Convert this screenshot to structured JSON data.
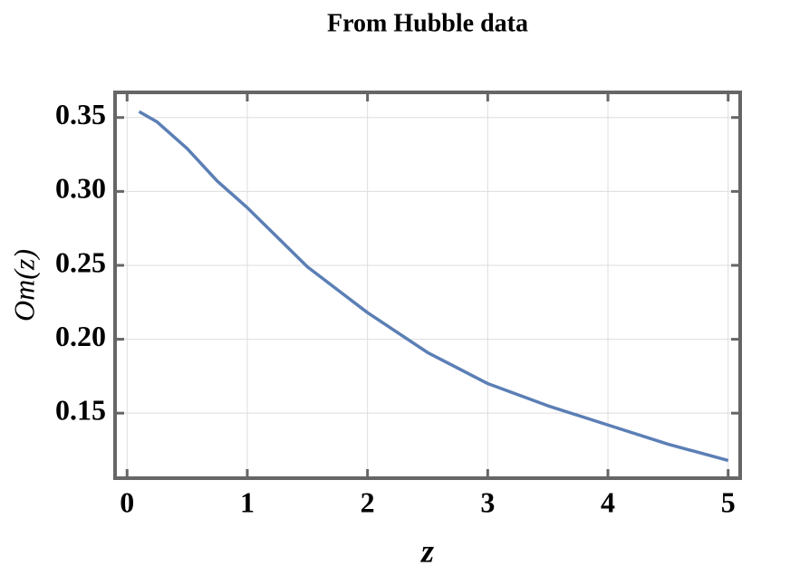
{
  "chart_data": {
    "type": "line",
    "title": "From Hubble data",
    "xlabel": "z",
    "ylabel": "Om(z)",
    "x": [
      0.1,
      0.25,
      0.5,
      0.75,
      1,
      1.5,
      2,
      2.5,
      3,
      3.5,
      4,
      4.5,
      5
    ],
    "series": [
      {
        "name": "Om(z)",
        "color": "#5b7fb5",
        "values": [
          0.354,
          0.347,
          0.329,
          0.307,
          0.289,
          0.249,
          0.218,
          0.191,
          0.17,
          0.155,
          0.142,
          0.129,
          0.118
        ]
      }
    ],
    "xlim": [
      -0.1,
      5.1
    ],
    "ylim": [
      0.106,
      0.367
    ],
    "xticks": [
      0,
      1,
      2,
      3,
      4,
      5
    ],
    "yticks": [
      {
        "value": 0.15,
        "label": "0.15"
      },
      {
        "value": 0.2,
        "label": "0.20"
      },
      {
        "value": 0.25,
        "label": "0.25"
      },
      {
        "value": 0.3,
        "label": "0.30"
      },
      {
        "value": 0.35,
        "label": "0.35"
      }
    ],
    "grid": true
  }
}
